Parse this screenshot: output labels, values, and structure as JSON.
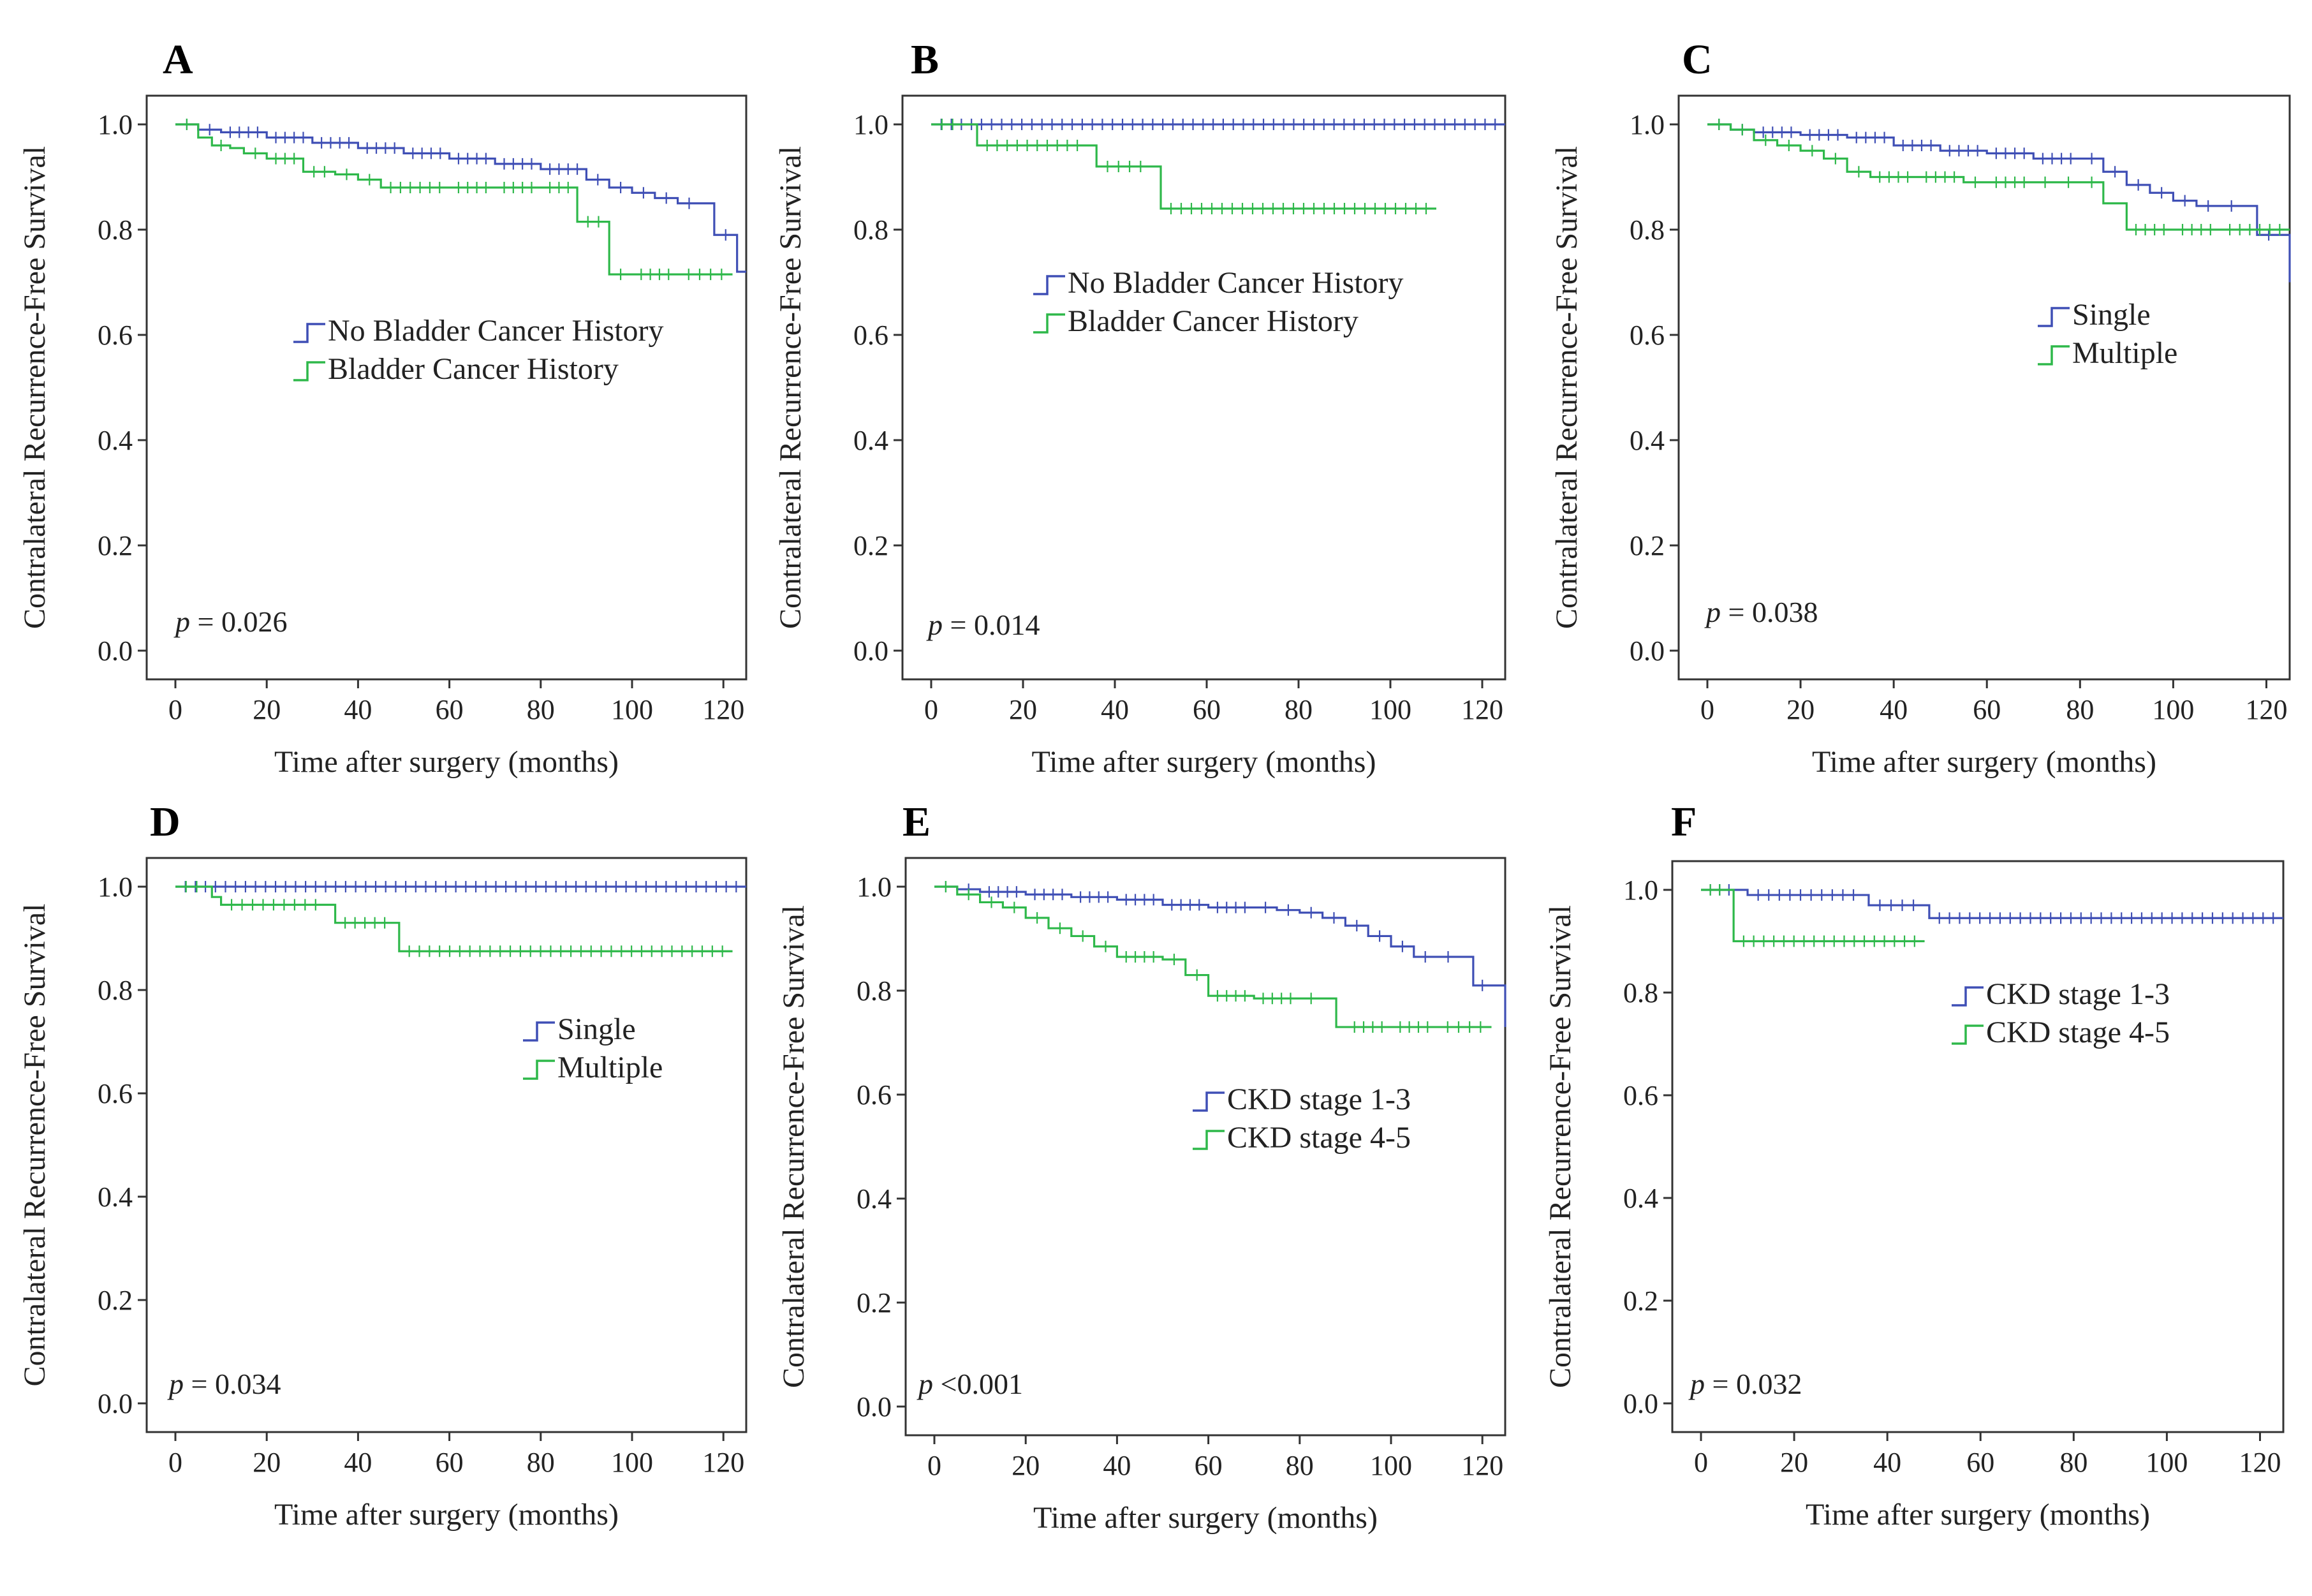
{
  "colors": {
    "group1": "#3F4FB5",
    "group2": "#2EB84A",
    "axis": "#333333"
  },
  "chart_data": [
    {
      "type": "line",
      "panel": "A",
      "xlabel": "Time after surgery (months)",
      "ylabel": "Contralateral Recurrence-Free Survival",
      "xlim": [
        0,
        125
      ],
      "ylim": [
        0,
        1.0
      ],
      "xticks": [
        "0",
        "20",
        "40",
        "60",
        "80",
        "100",
        "120"
      ],
      "yticks": [
        "0.0",
        "0.2",
        "0.4",
        "0.6",
        "0.8",
        "1.0"
      ],
      "p_prefix": "p",
      "p_text": "= 0.026",
      "series": [
        {
          "name": "No Bladder Cancer History",
          "x": [
            0,
            5,
            10,
            20,
            30,
            40,
            50,
            60,
            70,
            80,
            90,
            95,
            100,
            105,
            110,
            115,
            118,
            123,
            125
          ],
          "y": [
            1.0,
            0.99,
            0.985,
            0.975,
            0.965,
            0.955,
            0.945,
            0.935,
            0.925,
            0.915,
            0.895,
            0.88,
            0.87,
            0.86,
            0.85,
            0.85,
            0.79,
            0.72,
            0.72
          ]
        },
        {
          "name": "Bladder Cancer History",
          "x": [
            0,
            5,
            8,
            12,
            15,
            20,
            28,
            35,
            40,
            45,
            60,
            70,
            80,
            88,
            95,
            100,
            110,
            122
          ],
          "y": [
            1.0,
            0.975,
            0.96,
            0.955,
            0.945,
            0.935,
            0.91,
            0.905,
            0.895,
            0.88,
            0.88,
            0.88,
            0.88,
            0.815,
            0.715,
            0.715,
            0.715,
            0.715
          ]
        }
      ]
    },
    {
      "type": "line",
      "panel": "B",
      "xlabel": "Time after surgery (months)",
      "ylabel": "Contralateral Recurrence-Free Survival",
      "xlim": [
        0,
        125
      ],
      "ylim": [
        0,
        1.0
      ],
      "xticks": [
        "0",
        "20",
        "40",
        "60",
        "80",
        "100",
        "120"
      ],
      "yticks": [
        "0.0",
        "0.2",
        "0.4",
        "0.6",
        "0.8",
        "1.0"
      ],
      "p_prefix": "p",
      "p_text": "= 0.014",
      "series": [
        {
          "name": "No Bladder Cancer History",
          "x": [
            0,
            125
          ],
          "y": [
            1.0,
            1.0
          ]
        },
        {
          "name": "Bladder Cancer History",
          "x": [
            0,
            7,
            10,
            34,
            36,
            48,
            50,
            110
          ],
          "y": [
            1.0,
            1.0,
            0.96,
            0.96,
            0.92,
            0.92,
            0.84,
            0.84
          ]
        }
      ]
    },
    {
      "type": "line",
      "panel": "C",
      "xlabel": "Time after surgery (months)",
      "ylabel": "Contralateral Recurrence-Free Survival",
      "xlim": [
        0,
        125
      ],
      "ylim": [
        0,
        1.0
      ],
      "xticks": [
        "0",
        "20",
        "40",
        "60",
        "80",
        "100",
        "120"
      ],
      "yticks": [
        "0.0",
        "0.2",
        "0.4",
        "0.6",
        "0.8",
        "1.0"
      ],
      "p_prefix": "p",
      "p_text": "= 0.038",
      "series": [
        {
          "name": "Single",
          "x": [
            0,
            5,
            10,
            20,
            30,
            40,
            50,
            60,
            70,
            80,
            85,
            90,
            95,
            100,
            105,
            110,
            115,
            118,
            123,
            125
          ],
          "y": [
            1.0,
            0.99,
            0.985,
            0.98,
            0.975,
            0.96,
            0.95,
            0.945,
            0.935,
            0.935,
            0.91,
            0.885,
            0.87,
            0.855,
            0.845,
            0.845,
            0.845,
            0.79,
            0.79,
            0.7
          ]
        },
        {
          "name": "Multiple",
          "x": [
            0,
            5,
            10,
            15,
            20,
            25,
            30,
            35,
            45,
            55,
            60,
            70,
            75,
            80,
            85,
            88,
            90,
            100,
            110,
            125
          ],
          "y": [
            1.0,
            0.99,
            0.97,
            0.96,
            0.95,
            0.935,
            0.91,
            0.9,
            0.9,
            0.89,
            0.89,
            0.89,
            0.89,
            0.89,
            0.85,
            0.85,
            0.8,
            0.8,
            0.8,
            0.8
          ]
        }
      ]
    },
    {
      "type": "line",
      "panel": "D",
      "xlabel": "Time after surgery (months)",
      "ylabel": "Contralateral Recurrence-Free Survival",
      "xlim": [
        0,
        125
      ],
      "ylim": [
        0,
        1.0
      ],
      "xticks": [
        "0",
        "20",
        "40",
        "60",
        "80",
        "100",
        "120"
      ],
      "yticks": [
        "0.0",
        "0.2",
        "0.4",
        "0.6",
        "0.8",
        "1.0"
      ],
      "p_prefix": "p",
      "p_text": "= 0.034",
      "series": [
        {
          "name": "Single",
          "x": [
            0,
            125
          ],
          "y": [
            1.0,
            1.0
          ]
        },
        {
          "name": "Multiple",
          "x": [
            0,
            7,
            8,
            10,
            33,
            35,
            48,
            49,
            122
          ],
          "y": [
            1.0,
            1.0,
            0.98,
            0.965,
            0.965,
            0.93,
            0.93,
            0.875,
            0.875
          ]
        }
      ]
    },
    {
      "type": "line",
      "panel": "E",
      "xlabel": "Time after surgery (months)",
      "ylabel": "Contralateral Recurrence-Free Survival",
      "xlim": [
        0,
        125
      ],
      "ylim": [
        0,
        1.0
      ],
      "xticks": [
        "0",
        "20",
        "40",
        "60",
        "80",
        "100",
        "120"
      ],
      "yticks": [
        "0.0",
        "0.2",
        "0.4",
        "0.6",
        "0.8",
        "1.0"
      ],
      "p_prefix": "p",
      "p_text": "<0.001",
      "series": [
        {
          "name": "CKD stage 1-3",
          "x": [
            0,
            5,
            10,
            20,
            30,
            40,
            50,
            60,
            70,
            75,
            80,
            85,
            90,
            95,
            100,
            105,
            110,
            115,
            118,
            122,
            125
          ],
          "y": [
            1.0,
            0.995,
            0.99,
            0.985,
            0.98,
            0.975,
            0.965,
            0.96,
            0.96,
            0.955,
            0.95,
            0.94,
            0.925,
            0.905,
            0.885,
            0.865,
            0.865,
            0.865,
            0.81,
            0.81,
            0.73
          ]
        },
        {
          "name": "CKD stage 4-5",
          "x": [
            0,
            5,
            10,
            15,
            20,
            25,
            30,
            35,
            40,
            50,
            55,
            60,
            70,
            80,
            85,
            88,
            90,
            100,
            110,
            122
          ],
          "y": [
            1.0,
            0.985,
            0.97,
            0.96,
            0.94,
            0.92,
            0.905,
            0.885,
            0.865,
            0.86,
            0.83,
            0.79,
            0.785,
            0.785,
            0.785,
            0.73,
            0.73,
            0.73,
            0.73,
            0.73
          ]
        }
      ]
    },
    {
      "type": "line",
      "panel": "F",
      "xlabel": "Time after surgery (months)",
      "ylabel": "Contralateral Recurrence-Free Survival",
      "xlim": [
        0,
        125
      ],
      "ylim": [
        0,
        1.0
      ],
      "xticks": [
        "0",
        "20",
        "40",
        "60",
        "80",
        "100",
        "120"
      ],
      "yticks": [
        "0.0",
        "0.2",
        "0.4",
        "0.6",
        "0.8",
        "1.0"
      ],
      "p_prefix": "p",
      "p_text": "= 0.032",
      "series": [
        {
          "name": "CKD stage 1-3",
          "x": [
            0,
            8,
            10,
            35,
            36,
            48,
            49,
            125
          ],
          "y": [
            1.0,
            1.0,
            0.99,
            0.99,
            0.97,
            0.97,
            0.945,
            0.945
          ]
        },
        {
          "name": "CKD stage 4-5",
          "x": [
            0,
            6,
            7,
            48
          ],
          "y": [
            1.0,
            1.0,
            0.9,
            0.9
          ]
        }
      ]
    }
  ]
}
